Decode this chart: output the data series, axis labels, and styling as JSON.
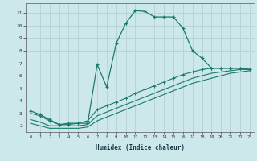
{
  "xlabel": "Humidex (Indice chaleur)",
  "xlim": [
    -0.5,
    23.5
  ],
  "ylim": [
    1.5,
    11.8
  ],
  "yticks": [
    2,
    3,
    4,
    5,
    6,
    7,
    8,
    9,
    10,
    11
  ],
  "xticks": [
    0,
    1,
    2,
    3,
    4,
    5,
    6,
    7,
    8,
    9,
    10,
    11,
    12,
    13,
    14,
    15,
    16,
    17,
    18,
    19,
    20,
    21,
    22,
    23
  ],
  "bg_color": "#cde8ea",
  "line_color": "#1a7a6a",
  "grid_color": "#b8d4d6",
  "curve1_x": [
    0,
    1,
    2,
    3,
    4,
    5,
    6,
    7,
    8,
    9,
    10,
    11,
    12,
    13,
    14,
    15,
    16,
    17,
    18,
    19,
    20,
    21,
    22,
    23
  ],
  "curve1_y": [
    3.2,
    2.9,
    2.5,
    2.1,
    2.2,
    2.2,
    2.2,
    6.9,
    5.1,
    8.6,
    10.2,
    11.2,
    11.15,
    10.7,
    10.7,
    10.7,
    9.8,
    8.0,
    7.4,
    6.6,
    6.6,
    6.6,
    6.6,
    6.5
  ],
  "curve2_x": [
    0,
    1,
    2,
    3,
    4,
    5,
    6,
    7,
    8,
    9,
    10,
    11,
    12,
    13,
    14,
    15,
    16,
    17,
    18,
    19,
    20,
    21,
    22,
    23
  ],
  "curve2_y": [
    3.0,
    2.8,
    2.4,
    2.1,
    2.1,
    2.2,
    2.4,
    3.3,
    3.6,
    3.9,
    4.2,
    4.6,
    4.9,
    5.2,
    5.5,
    5.8,
    6.1,
    6.3,
    6.5,
    6.6,
    6.6,
    6.6,
    6.6,
    6.5
  ],
  "curve3_x": [
    0,
    1,
    2,
    3,
    4,
    5,
    6,
    7,
    8,
    9,
    10,
    11,
    12,
    13,
    14,
    15,
    16,
    17,
    18,
    19,
    20,
    21,
    22,
    23
  ],
  "curve3_y": [
    2.5,
    2.3,
    2.0,
    2.0,
    2.0,
    2.0,
    2.1,
    2.8,
    3.1,
    3.4,
    3.7,
    4.0,
    4.3,
    4.6,
    4.9,
    5.2,
    5.5,
    5.8,
    6.0,
    6.2,
    6.3,
    6.4,
    6.5,
    6.5
  ],
  "curve4_x": [
    0,
    1,
    2,
    3,
    4,
    5,
    6,
    7,
    8,
    9,
    10,
    11,
    12,
    13,
    14,
    15,
    16,
    17,
    18,
    19,
    20,
    21,
    22,
    23
  ],
  "curve4_y": [
    2.2,
    2.0,
    1.8,
    1.8,
    1.8,
    1.8,
    1.9,
    2.4,
    2.7,
    3.0,
    3.3,
    3.6,
    3.9,
    4.2,
    4.5,
    4.8,
    5.1,
    5.4,
    5.6,
    5.8,
    6.0,
    6.2,
    6.3,
    6.4
  ]
}
